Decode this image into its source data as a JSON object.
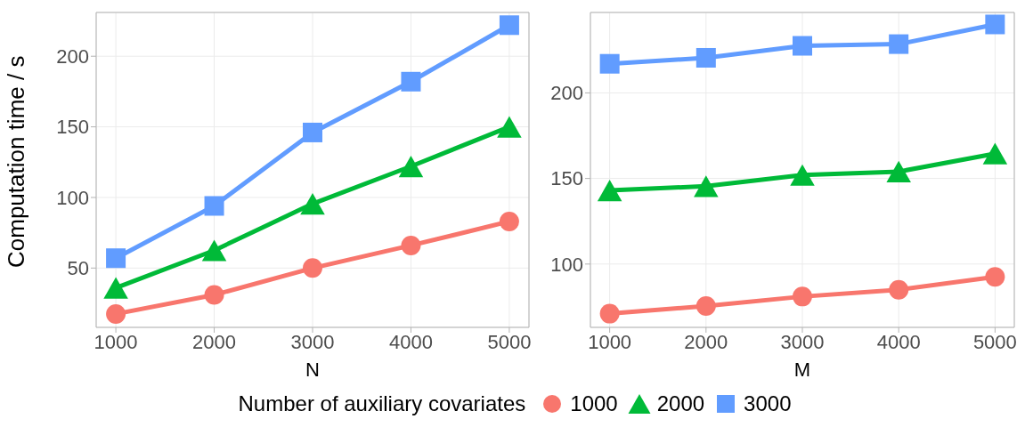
{
  "chart_data": [
    {
      "type": "line",
      "xlabel": "N",
      "ylabel": "Computation time / s",
      "legend_title": "Number of auxiliary covariates",
      "legend": "bottom",
      "grid": true,
      "x": [
        1000,
        2000,
        3000,
        4000,
        5000
      ],
      "xlim": [
        800,
        5200
      ],
      "xticks": [
        1000,
        2000,
        3000,
        4000,
        5000
      ],
      "ylim": [
        8,
        231
      ],
      "yticks": [
        50,
        100,
        150,
        200
      ],
      "series": [
        {
          "name": "1000",
          "color": "#f8766d",
          "marker": "circle",
          "values": [
            17.5,
            31,
            50,
            66,
            83
          ]
        },
        {
          "name": "2000",
          "color": "#00ba38",
          "marker": "triangle",
          "values": [
            36,
            62.5,
            95.5,
            122,
            150
          ]
        },
        {
          "name": "3000",
          "color": "#619cff",
          "marker": "square",
          "values": [
            57,
            94,
            146,
            182,
            222
          ]
        }
      ]
    },
    {
      "type": "line",
      "xlabel": "M",
      "grid": true,
      "x": [
        1000,
        2000,
        3000,
        4000,
        5000
      ],
      "xlim": [
        800,
        5200
      ],
      "xticks": [
        1000,
        2000,
        3000,
        4000,
        5000
      ],
      "ylim": [
        63,
        247
      ],
      "yticks": [
        100,
        150,
        200
      ],
      "series": [
        {
          "name": "1000",
          "color": "#f8766d",
          "marker": "circle",
          "values": [
            71,
            75.5,
            81,
            85,
            92.5
          ]
        },
        {
          "name": "2000",
          "color": "#00ba38",
          "marker": "triangle",
          "values": [
            143,
            145.5,
            152,
            154,
            164.5
          ]
        },
        {
          "name": "3000",
          "color": "#619cff",
          "marker": "square",
          "values": [
            217,
            220.5,
            227.5,
            228.5,
            240
          ]
        }
      ]
    }
  ]
}
